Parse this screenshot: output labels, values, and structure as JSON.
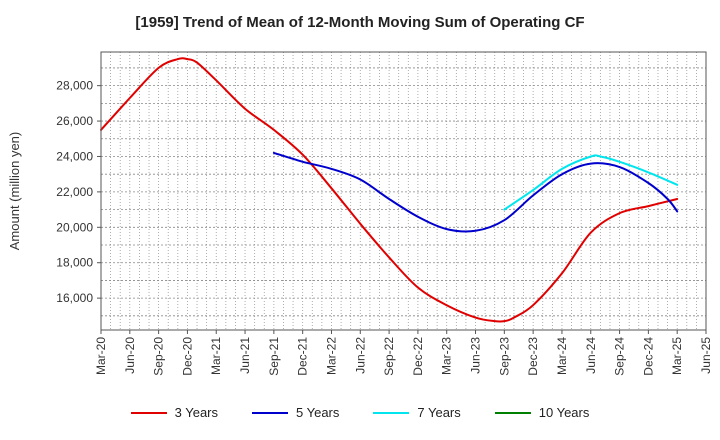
{
  "chart_data": {
    "type": "line",
    "title": "[1959]  Trend of Mean of 12-Month Moving Sum of Operating CF",
    "ylabel": "Amount (million yen)",
    "xlabel": "",
    "ylim": [
      14200,
      29900
    ],
    "yticks": [
      16000,
      18000,
      20000,
      22000,
      24000,
      26000,
      28000
    ],
    "ytick_labels": [
      "16,000",
      "18,000",
      "20,000",
      "22,000",
      "24,000",
      "26,000",
      "28,000"
    ],
    "x_start": "Mar-20",
    "x_end": "Jun-25",
    "xticks": [
      "Mar-20",
      "Jun-20",
      "Sep-20",
      "Dec-20",
      "Mar-21",
      "Jun-21",
      "Sep-21",
      "Dec-21",
      "Mar-22",
      "Jun-22",
      "Sep-22",
      "Dec-22",
      "Mar-23",
      "Jun-23",
      "Sep-23",
      "Dec-23",
      "Mar-24",
      "Jun-24",
      "Sep-24",
      "Dec-24",
      "Mar-25",
      "Jun-25"
    ],
    "grid": true,
    "legend_position": "bottom",
    "series": [
      {
        "name": "3 Years",
        "color": "#e00000",
        "points": [
          [
            "Mar-20",
            25500
          ],
          [
            "Jun-20",
            27300
          ],
          [
            "Sep-20",
            29000
          ],
          [
            "Nov-20",
            29500
          ],
          [
            "Dec-20",
            29500
          ],
          [
            "Jan-21",
            29300
          ],
          [
            "Mar-21",
            28300
          ],
          [
            "Jun-21",
            26700
          ],
          [
            "Sep-21",
            25500
          ],
          [
            "Dec-21",
            24100
          ],
          [
            "Mar-22",
            22200
          ],
          [
            "Jun-22",
            20200
          ],
          [
            "Sep-22",
            18300
          ],
          [
            "Dec-22",
            16600
          ],
          [
            "Mar-23",
            15600
          ],
          [
            "Jun-23",
            14900
          ],
          [
            "Aug-23",
            14700
          ],
          [
            "Sep-23",
            14700
          ],
          [
            "Oct-23",
            14900
          ],
          [
            "Dec-23",
            15600
          ],
          [
            "Mar-24",
            17400
          ],
          [
            "Jun-24",
            19700
          ],
          [
            "Sep-24",
            20800
          ],
          [
            "Dec-24",
            21200
          ],
          [
            "Mar-25",
            21600
          ]
        ]
      },
      {
        "name": "5 Years",
        "color": "#0000cc",
        "points": [
          [
            "Sep-21",
            24200
          ],
          [
            "Dec-21",
            23700
          ],
          [
            "Mar-22",
            23300
          ],
          [
            "Jun-22",
            22700
          ],
          [
            "Sep-22",
            21600
          ],
          [
            "Dec-22",
            20600
          ],
          [
            "Mar-23",
            19900
          ],
          [
            "Jun-23",
            19800
          ],
          [
            "Sep-23",
            20400
          ],
          [
            "Dec-23",
            21800
          ],
          [
            "Mar-24",
            23000
          ],
          [
            "Jun-24",
            23600
          ],
          [
            "Sep-24",
            23400
          ],
          [
            "Dec-24",
            22500
          ],
          [
            "Feb-25",
            21600
          ],
          [
            "Mar-25",
            20900
          ]
        ]
      },
      {
        "name": "7 Years",
        "color": "#00e5ee",
        "points": [
          [
            "Sep-23",
            21000
          ],
          [
            "Dec-23",
            22100
          ],
          [
            "Mar-24",
            23300
          ],
          [
            "Jun-24",
            24000
          ],
          [
            "Jul-24",
            24000
          ],
          [
            "Sep-24",
            23700
          ],
          [
            "Dec-24",
            23100
          ],
          [
            "Mar-25",
            22400
          ]
        ]
      },
      {
        "name": "10 Years",
        "color": "#008000",
        "points": []
      }
    ]
  }
}
